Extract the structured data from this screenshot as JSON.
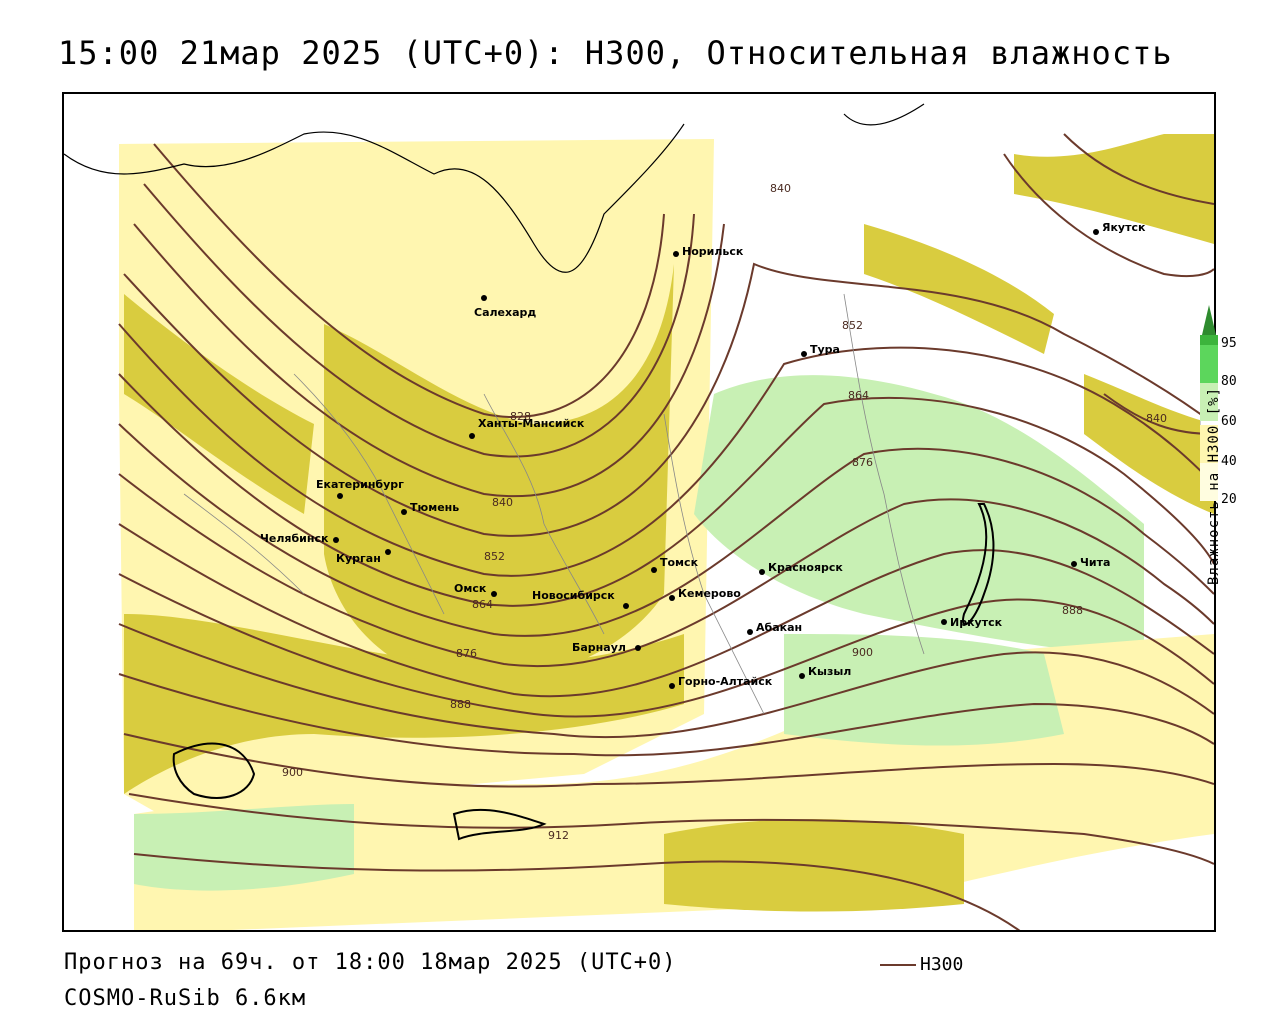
{
  "title": "15:00 21мар 2025 (UTC+0): H300, Относительная влажность",
  "footer": {
    "forecast": "Прогноз на 69ч. от 18:00 18мар 2025 (UTC+0)",
    "model": "COSMO-RuSib 6.6км"
  },
  "legend": {
    "label": "H300"
  },
  "colorbar": {
    "title": "Влажность на H300 [%]",
    "ticks": [
      "95",
      "80",
      "60",
      "40",
      "20"
    ],
    "colors": {
      "c95": "#2e8b2e",
      "c80": "#5cd65c",
      "c60": "#c8f0b4",
      "c50": "#ffffff",
      "c40": "#fff6b0",
      "c20": "#fffde0",
      "c_dry": "#ffffff",
      "olive": "#d6c83a"
    }
  },
  "contour_labels": [
    "840",
    "828",
    "840",
    "852",
    "864",
    "876",
    "888",
    "900",
    "912",
    "852",
    "864",
    "876",
    "888",
    "900",
    "840"
  ],
  "cities": [
    {
      "name": "Норильск"
    },
    {
      "name": "Салехард"
    },
    {
      "name": "Тура"
    },
    {
      "name": "Якутск"
    },
    {
      "name": "Ханты-Мансийск"
    },
    {
      "name": "Екатеринбург"
    },
    {
      "name": "Тюмень"
    },
    {
      "name": "Челябинск"
    },
    {
      "name": "Курган"
    },
    {
      "name": "Омск"
    },
    {
      "name": "Томск"
    },
    {
      "name": "Красноярск"
    },
    {
      "name": "Новосибирск"
    },
    {
      "name": "Кемерово"
    },
    {
      "name": "Абакан"
    },
    {
      "name": "Барнаул"
    },
    {
      "name": "Горно-Алтайск"
    },
    {
      "name": "Кызыл"
    },
    {
      "name": "Иркутск"
    },
    {
      "name": "Чита"
    }
  ]
}
